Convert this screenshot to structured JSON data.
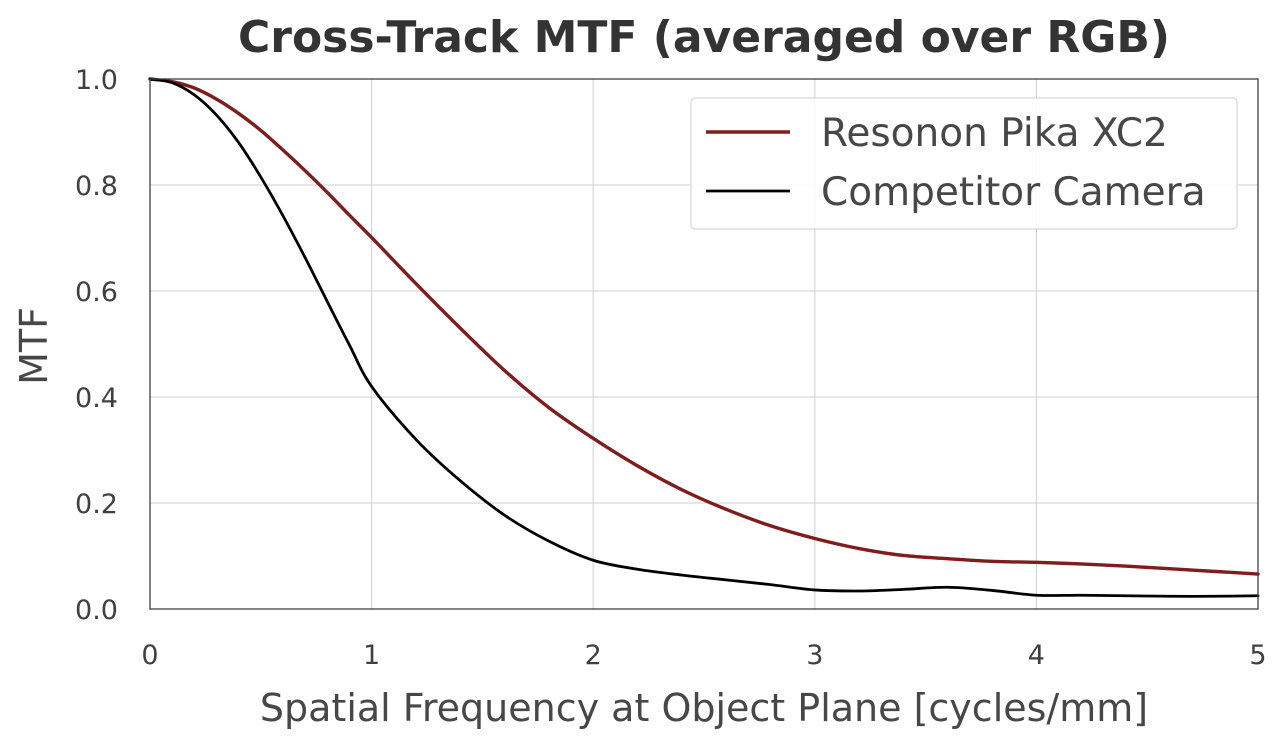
{
  "chart_data": {
    "type": "line",
    "title": "Cross-Track MTF (averaged over RGB)",
    "xlabel": "Spatial Frequency at Object Plane [cycles/mm]",
    "ylabel": "MTF",
    "xlim": [
      0,
      5
    ],
    "ylim": [
      0,
      1
    ],
    "xticks": [
      0,
      1,
      2,
      3,
      4,
      5
    ],
    "xtick_labels": [
      "0",
      "1",
      "2",
      "3",
      "4",
      "5"
    ],
    "yticks": [
      0,
      0.2,
      0.4,
      0.6,
      0.8,
      1.0
    ],
    "ytick_labels": [
      "0.0",
      "0.2",
      "0.4",
      "0.6",
      "0.8",
      "1.0"
    ],
    "grid": true,
    "legend_position": "top-right",
    "series": [
      {
        "name": "Resonon Pika XC2",
        "color": "#7f1d1d",
        "x": [
          0,
          0.1,
          0.2,
          0.3,
          0.4,
          0.5,
          0.6,
          0.7,
          0.8,
          0.9,
          1.0,
          1.2,
          1.4,
          1.6,
          1.8,
          2.0,
          2.2,
          2.4,
          2.6,
          2.8,
          3.0,
          3.2,
          3.4,
          3.6,
          3.8,
          4.0,
          4.2,
          4.4,
          4.6,
          4.8,
          5.0
        ],
        "y": [
          1.0,
          0.995,
          0.983,
          0.962,
          0.935,
          0.903,
          0.866,
          0.827,
          0.786,
          0.743,
          0.701,
          0.614,
          0.53,
          0.45,
          0.38,
          0.322,
          0.27,
          0.225,
          0.188,
          0.157,
          0.133,
          0.114,
          0.101,
          0.095,
          0.09,
          0.088,
          0.085,
          0.081,
          0.076,
          0.071,
          0.066
        ]
      },
      {
        "name": "Competitor Camera",
        "color": "#000000",
        "x": [
          0,
          0.1,
          0.2,
          0.3,
          0.4,
          0.5,
          0.6,
          0.7,
          0.8,
          0.9,
          1.0,
          1.2,
          1.4,
          1.6,
          1.8,
          2.0,
          2.2,
          2.4,
          2.6,
          2.8,
          3.0,
          3.2,
          3.4,
          3.6,
          3.8,
          4.0,
          4.2,
          4.4,
          4.6,
          4.8,
          5.0
        ],
        "y": [
          1.0,
          0.993,
          0.97,
          0.932,
          0.88,
          0.815,
          0.742,
          0.663,
          0.58,
          0.498,
          0.42,
          0.32,
          0.242,
          0.177,
          0.128,
          0.092,
          0.075,
          0.064,
          0.055,
          0.046,
          0.036,
          0.034,
          0.037,
          0.041,
          0.035,
          0.026,
          0.026,
          0.025,
          0.024,
          0.024,
          0.025
        ]
      }
    ]
  }
}
